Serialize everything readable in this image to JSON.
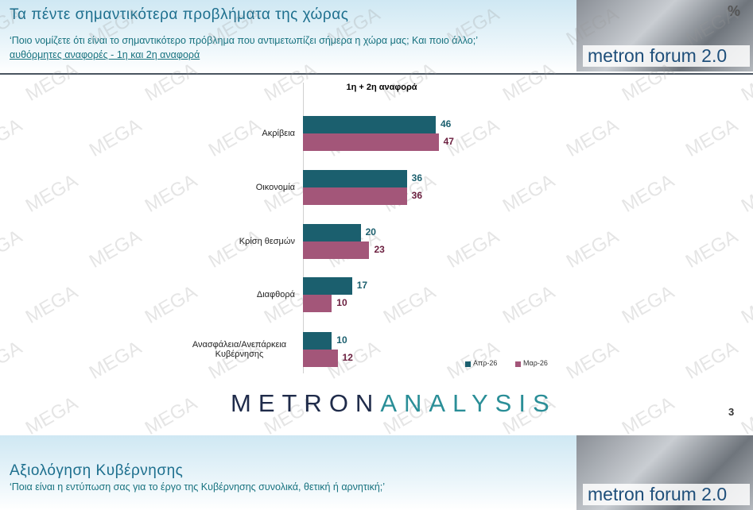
{
  "header": {
    "title": "Τα πέντε σημαντικότερα προβλήματα της χώρας",
    "subtitle": "‘Ποιο νομίζετε ότι είναι το σημαντικότερο πρόβλημα που αντιμετωπίζει σήμερα η χώρα μας; Και ποιο άλλο;’",
    "note": "αυθόρμητες αναφορές - 1η και 2η αναφορά"
  },
  "logo": {
    "text": "metron forum 2.0",
    "symbol": "%"
  },
  "watermark": "MEGA",
  "chart_data": {
    "type": "bar",
    "orientation": "horizontal",
    "subtitle": "1η + 2η αναφορά",
    "categories": [
      "Ακρίβεια",
      "Οικονομία",
      "Κρίση θεσμών",
      "Διαφθορά",
      "Ανασφάλεια/Ανεπάρκεια Κυβέρνησης"
    ],
    "series": [
      {
        "name": "Απρ-26",
        "color": "#1b5f6e",
        "label_color": "#1b5f6e",
        "values": [
          46,
          36,
          20,
          17,
          10
        ]
      },
      {
        "name": "Μαρ-26",
        "color": "#a35679",
        "label_color": "#6b1f3f",
        "values": [
          47,
          36,
          23,
          10,
          12
        ]
      }
    ],
    "legend": "lower right"
  },
  "footer": {
    "brand_a": "METRON",
    "brand_b": "ANALYSIS",
    "page": "3"
  },
  "next_slide": {
    "title": "Αξιολόγηση Κυβέρνησης",
    "subtitle": "‘Ποια είναι η εντύπωση σας για το έργο της Κυβέρνησης συνολικά, θετική ή αρνητική;’"
  }
}
